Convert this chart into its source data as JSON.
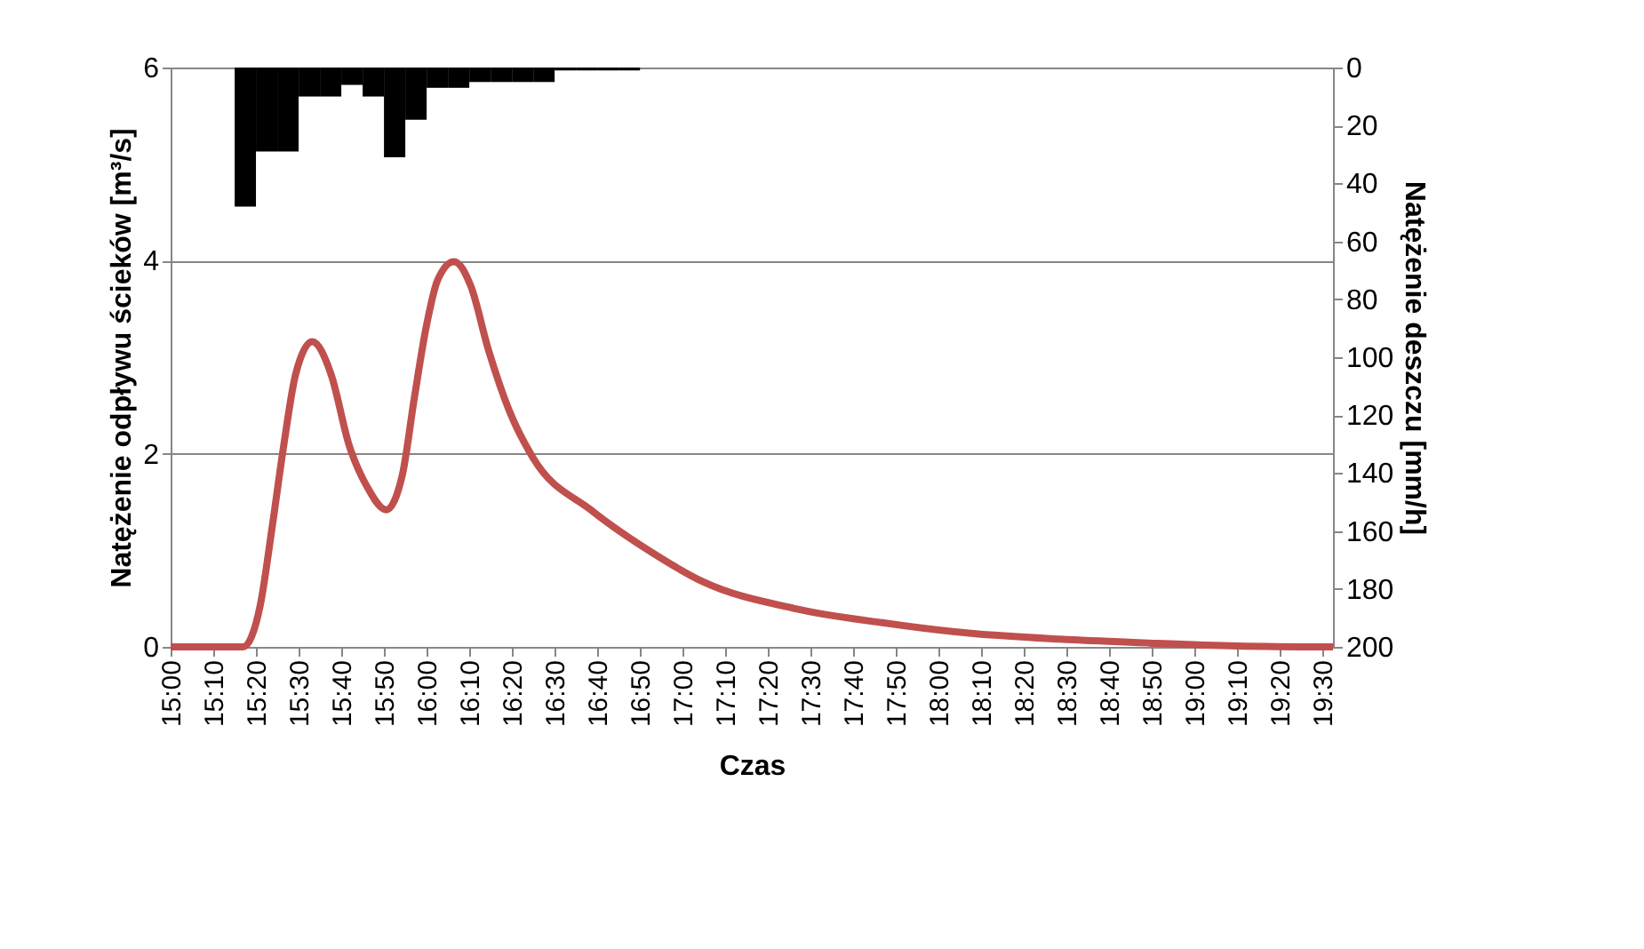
{
  "chart_data": {
    "type": "line",
    "xlabel": "Czas",
    "ylabel": "Natężenie odpływu ścieków [m³/s]",
    "y2label": "Natężenie deszczu [mm/h]",
    "xlim": [
      15.0,
      19.54
    ],
    "ylim": [
      0,
      6
    ],
    "yticks": [
      0,
      2,
      4,
      6
    ],
    "y2lim": [
      200,
      0
    ],
    "y2ticks": [
      0,
      20,
      40,
      60,
      80,
      100,
      120,
      140,
      160,
      180,
      200
    ],
    "xticks": [
      {
        "value": 15.0,
        "label": "15:00"
      },
      {
        "value": 15.1667,
        "label": "15:10"
      },
      {
        "value": 15.3333,
        "label": "15:20"
      },
      {
        "value": 15.5,
        "label": "15:30"
      },
      {
        "value": 15.6667,
        "label": "15:40"
      },
      {
        "value": 15.8333,
        "label": "15:50"
      },
      {
        "value": 16.0,
        "label": "16:00"
      },
      {
        "value": 16.1667,
        "label": "16:10"
      },
      {
        "value": 16.3333,
        "label": "16:20"
      },
      {
        "value": 16.5,
        "label": "16:30"
      },
      {
        "value": 16.6667,
        "label": "16:40"
      },
      {
        "value": 16.8333,
        "label": "16:50"
      },
      {
        "value": 17.0,
        "label": "17:00"
      },
      {
        "value": 17.1667,
        "label": "17:10"
      },
      {
        "value": 17.3333,
        "label": "17:20"
      },
      {
        "value": 17.5,
        "label": "17:30"
      },
      {
        "value": 17.6667,
        "label": "17:40"
      },
      {
        "value": 17.8333,
        "label": "17:50"
      },
      {
        "value": 18.0,
        "label": "18:00"
      },
      {
        "value": 18.1667,
        "label": "18:10"
      },
      {
        "value": 18.3333,
        "label": "18:20"
      },
      {
        "value": 18.5,
        "label": "18:30"
      },
      {
        "value": 18.6667,
        "label": "18:40"
      },
      {
        "value": 18.8333,
        "label": "18:50"
      },
      {
        "value": 19.0,
        "label": "19:00"
      },
      {
        "value": 19.1667,
        "label": "19:10"
      },
      {
        "value": 19.3333,
        "label": "19:20"
      },
      {
        "value": 19.5,
        "label": "19:30"
      }
    ],
    "grid": "y",
    "series": [
      {
        "type": "bar",
        "axis": "y2",
        "color": "#000000",
        "x": [
          15.2917,
          15.375,
          15.4583,
          15.5417,
          15.625,
          15.7083,
          15.7917,
          15.875,
          15.9583,
          16.0417,
          16.125,
          16.2083,
          16.2917,
          16.375,
          16.4583,
          16.5417,
          16.625,
          16.7083,
          16.7917
        ],
        "values": [
          48,
          29,
          29,
          10,
          10,
          6,
          10,
          31,
          18,
          7,
          7,
          5,
          5,
          5,
          5,
          1,
          1,
          1,
          1
        ]
      },
      {
        "type": "line",
        "color": "#c0504d",
        "x": [
          15.0,
          15.283,
          15.35,
          15.396,
          15.442,
          15.488,
          15.553,
          15.627,
          15.697,
          15.767,
          15.842,
          15.905,
          15.952,
          15.998,
          16.043,
          16.107,
          16.172,
          16.242,
          16.322,
          16.415,
          16.646,
          16.867,
          17.083,
          17.433,
          17.78,
          18.127,
          18.475,
          18.822,
          19.167,
          19.54
        ],
        "values": [
          0,
          0,
          0.43,
          1.23,
          2.09,
          2.82,
          3.16,
          2.82,
          2.09,
          1.66,
          1.42,
          1.78,
          2.58,
          3.31,
          3.8,
          3.99,
          3.74,
          3.07,
          2.45,
          1.96,
          1.41,
          1.0,
          0.67,
          0.4,
          0.25,
          0.14,
          0.08,
          0.04,
          0.01,
          0.0
        ]
      }
    ]
  }
}
